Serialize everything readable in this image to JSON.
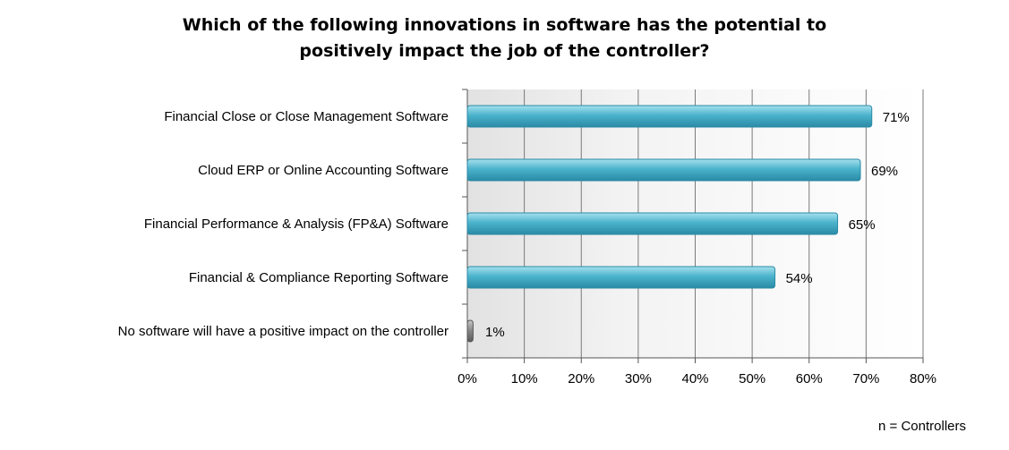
{
  "chart_data": {
    "type": "bar",
    "orientation": "horizontal",
    "title_lines": [
      "Which of the following innovations in software has the potential to",
      "positively impact the job of the controller?"
    ],
    "categories": [
      "Financial Close or Close Management Software",
      "Cloud ERP or Online Accounting Software",
      "Financial Performance & Analysis (FP&A) Software",
      "Financial & Compliance Reporting Software",
      "No software will have a positive impact on the controller"
    ],
    "values": [
      71,
      69,
      65,
      54,
      1
    ],
    "value_labels": [
      "71%",
      "69%",
      "65%",
      "54%",
      "1%"
    ],
    "x_ticks": [
      0,
      10,
      20,
      30,
      40,
      50,
      60,
      70,
      80
    ],
    "x_tick_labels": [
      "0%",
      "10%",
      "20%",
      "30%",
      "40%",
      "50%",
      "60%",
      "70%",
      "80%"
    ],
    "xlim": [
      0,
      80
    ],
    "xlabel": "",
    "ylabel": "",
    "grid": true,
    "legend": "none",
    "colors": {
      "bar": "#4bb3cc",
      "bar_dark": "#2a8aa5",
      "bar_light": "#a6e1ee",
      "last_bar": "#7f7f7f",
      "grid": "#7a7a7a"
    }
  },
  "footnote": "n = Controllers"
}
